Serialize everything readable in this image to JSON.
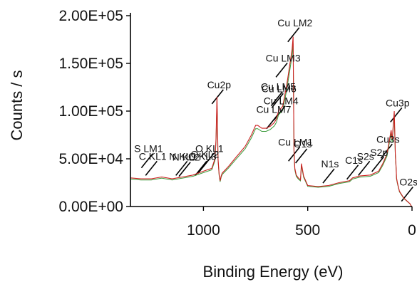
{
  "chart_data": {
    "type": "line",
    "title": "",
    "xlabel": "Binding Energy (eV)",
    "ylabel": "Counts / s",
    "xlim": [
      1350,
      0
    ],
    "x_reversed": true,
    "ylim": [
      0,
      200000
    ],
    "x_ticks": [
      1000,
      500,
      0
    ],
    "x_tick_labels": [
      "1000",
      "500",
      "0"
    ],
    "y_ticks": [
      0,
      50000,
      100000,
      150000,
      200000
    ],
    "y_tick_labels": [
      "0.00E+00",
      "5.00E+04",
      "1.00E+05",
      "1.50E+05",
      "2.00E+05"
    ],
    "grid": false,
    "colors": {
      "spectrum": "#cc2020",
      "background": "#3a9a3a",
      "axes": "#000000",
      "marker": "#000000"
    },
    "series": [
      {
        "color": "#cc2020",
        "x": [
          1350,
          1300,
          1250,
          1200,
          1150,
          1100,
          1050,
          1000,
          960,
          945,
          940,
          935,
          933,
          930,
          925,
          920,
          915,
          910,
          880,
          850,
          800,
          770,
          750,
          740,
          720,
          700,
          680,
          660,
          650,
          640,
          620,
          600,
          585,
          575,
          570,
          568,
          566,
          562,
          555,
          545,
          535,
          530,
          520,
          500,
          450,
          400,
          350,
          300,
          285,
          250,
          200,
          160,
          140,
          120,
          100,
          95,
          85,
          80,
          76,
          74,
          70,
          60,
          40,
          20,
          10,
          5,
          0
        ],
        "y": [
          30000,
          29000,
          29000,
          31000,
          29000,
          31000,
          33000,
          37000,
          40000,
          50000,
          70000,
          115000,
          90000,
          50000,
          34000,
          27000,
          32000,
          35000,
          42000,
          50000,
          63000,
          75000,
          85000,
          85000,
          82000,
          82000,
          84000,
          88000,
          92000,
          100000,
          105000,
          128000,
          150000,
          165000,
          178000,
          120000,
          60000,
          40000,
          33000,
          30000,
          28000,
          45000,
          32000,
          22000,
          21000,
          22000,
          25000,
          27000,
          30000,
          32000,
          33000,
          37000,
          45000,
          55000,
          80000,
          70000,
          100000,
          55000,
          40000,
          30000,
          25000,
          16000,
          9000,
          5000,
          3000,
          1000,
          0
        ]
      }
    ],
    "peak_markers": [
      {
        "label": "Cu LM2",
        "x": 568,
        "y": 180000
      },
      {
        "label": "Cu LM3",
        "x": 625,
        "y": 143000
      },
      {
        "label": "Cu2p",
        "x": 932,
        "y": 115000
      },
      {
        "label": "Cu LM5",
        "x": 648,
        "y": 113000
      },
      {
        "label": "Cu LM6",
        "x": 645,
        "y": 111000
      },
      {
        "label": "Cu LM4",
        "x": 635,
        "y": 98000
      },
      {
        "label": "Cu LM7",
        "x": 670,
        "y": 89000
      },
      {
        "label": "Cu LM1",
        "x": 565,
        "y": 55000
      },
      {
        "label": "O1s",
        "x": 531,
        "y": 53000
      },
      {
        "label": "O KL1",
        "x": 978,
        "y": 48000
      },
      {
        "label": "O KL2",
        "x": 1000,
        "y": 42000
      },
      {
        "label": "O KL3",
        "x": 1012,
        "y": 40000
      },
      {
        "label": "S LM1",
        "x": 1270,
        "y": 48000
      },
      {
        "label": "C KL1",
        "x": 1250,
        "y": 40000
      },
      {
        "label": "N KL1",
        "x": 1105,
        "y": 40000
      },
      {
        "label": "N KL2",
        "x": 1090,
        "y": 39000
      },
      {
        "label": "N1s",
        "x": 400,
        "y": 32000
      },
      {
        "label": "C1s",
        "x": 285,
        "y": 36000
      },
      {
        "label": "S2s",
        "x": 230,
        "y": 40000
      },
      {
        "label": "S2p",
        "x": 165,
        "y": 44000
      },
      {
        "label": "Cu3s",
        "x": 122,
        "y": 58000
      },
      {
        "label": "Cu3p",
        "x": 76,
        "y": 96000
      },
      {
        "label": "O2s",
        "x": 23,
        "y": 13000
      }
    ]
  }
}
